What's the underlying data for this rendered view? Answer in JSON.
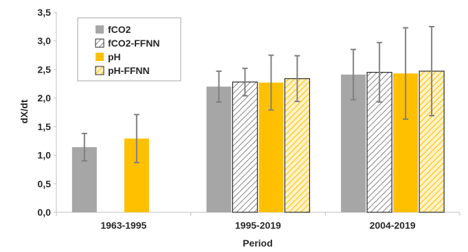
{
  "chart_data": {
    "type": "bar",
    "title": "",
    "xlabel": "Period",
    "ylabel": "dX/dt",
    "categories": [
      "1963-1995",
      "1995-2019",
      "2004-2019"
    ],
    "ylim": [
      0,
      3.5
    ],
    "yticks": [
      0,
      0.5,
      1.0,
      1.5,
      2.0,
      2.5,
      3.0,
      3.5
    ],
    "ytick_labels": [
      "0,0",
      "0,5",
      "1,0",
      "1,5",
      "2,0",
      "2,5",
      "3,0",
      "3,5"
    ],
    "grid": false,
    "legend_position": "top-left",
    "error_bars": true,
    "series": [
      {
        "name": "fCO2",
        "color": "#a6a6a6",
        "pattern": "solid",
        "values": [
          1.14,
          2.2,
          2.41
        ],
        "errors": [
          0.24,
          0.27,
          0.44
        ]
      },
      {
        "name": "fCO2-FFNN",
        "color": "#ffffff",
        "hatch_color": "#8c8c8c",
        "pattern": "hatched",
        "values": [
          null,
          2.28,
          2.45
        ],
        "errors": [
          null,
          0.24,
          0.52
        ]
      },
      {
        "name": "pH",
        "color": "#ffc000",
        "pattern": "solid",
        "values": [
          1.29,
          2.27,
          2.43
        ],
        "errors": [
          0.42,
          0.48,
          0.8
        ]
      },
      {
        "name": "pH-FFNN",
        "color": "#fff0c0",
        "hatch_color": "#ffc000",
        "pattern": "hatched",
        "values": [
          null,
          2.34,
          2.47
        ],
        "errors": [
          null,
          0.4,
          0.78
        ]
      }
    ]
  }
}
